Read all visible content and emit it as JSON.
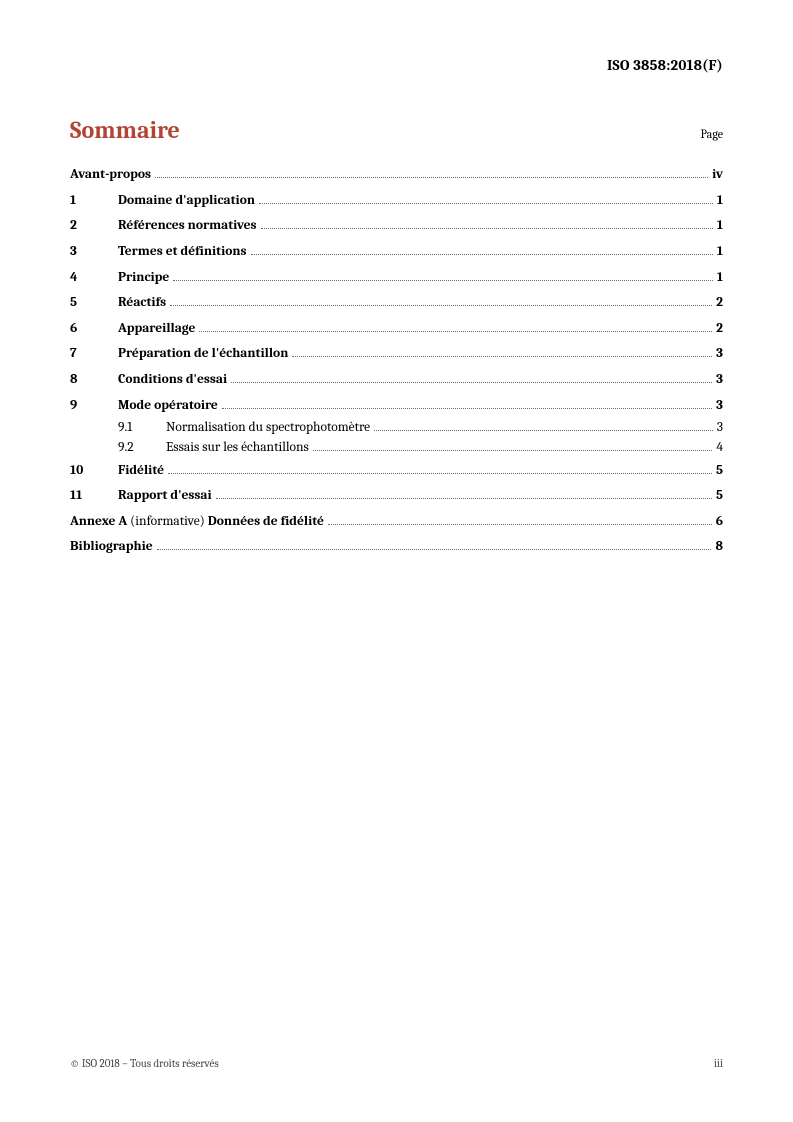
{
  "header": {
    "doc_id": "ISO 3858:2018(F)"
  },
  "title": "Sommaire",
  "page_label": "Page",
  "toc": {
    "foreword": {
      "label": "Avant-propos",
      "page": "iv"
    },
    "entries": [
      {
        "num": "1",
        "label": "Domaine d'application",
        "page": "1"
      },
      {
        "num": "2",
        "label": "Références normatives",
        "page": "1"
      },
      {
        "num": "3",
        "label": "Termes et définitions",
        "page": "1"
      },
      {
        "num": "4",
        "label": "Principe",
        "page": "1"
      },
      {
        "num": "5",
        "label": "Réactifs",
        "page": "2"
      },
      {
        "num": "6",
        "label": "Appareillage",
        "page": "2"
      },
      {
        "num": "7",
        "label": "Préparation de l'échantillon",
        "page": "3"
      },
      {
        "num": "8",
        "label": "Conditions d'essai",
        "page": "3"
      },
      {
        "num": "9",
        "label": "Mode opératoire",
        "page": "3",
        "subs": [
          {
            "num": "9.1",
            "label": "Normalisation du spectrophotomètre",
            "page": "3"
          },
          {
            "num": "9.2",
            "label": "Essais sur les échantillons",
            "page": "4"
          }
        ]
      },
      {
        "num": "10",
        "label": "Fidélité",
        "page": "5"
      },
      {
        "num": "11",
        "label": "Rapport d'essai",
        "page": "5"
      }
    ],
    "annex": {
      "prefix": "Annexe A",
      "paren": " (informative) ",
      "label": "Données de fidélité",
      "page": "6"
    },
    "biblio": {
      "label": "Bibliographie",
      "page": "8"
    }
  },
  "footer": {
    "copyright": "© ISO 2018 – Tous droits réservés",
    "page_num": "iii"
  },
  "colors": {
    "title": "#b24432",
    "text": "#000000",
    "leader": "#6b6b6b",
    "bg": "#ffffff"
  },
  "typography": {
    "body_pt": 13.5,
    "title_pt": 24,
    "header_pt": 15,
    "footer_pt": 11
  }
}
